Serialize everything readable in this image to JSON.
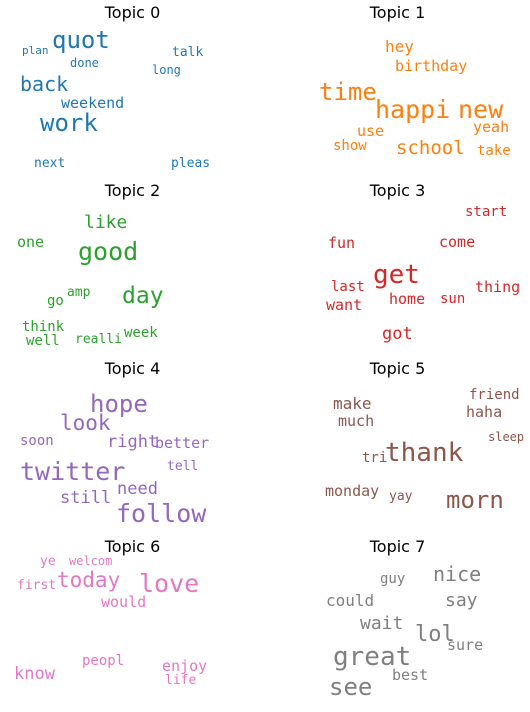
{
  "chart_data": [
    {
      "type": "wordcloud",
      "title": "Topic 0",
      "color": "#1f77b4",
      "words": [
        "quot",
        "work",
        "back",
        "weekend",
        "done",
        "plan",
        "talk",
        "long",
        "next",
        "pleas"
      ]
    },
    {
      "type": "wordcloud",
      "title": "Topic 1",
      "color": "#ff7f0e",
      "words": [
        "happi",
        "new",
        "time",
        "school",
        "hey",
        "birthday",
        "use",
        "yeah",
        "show",
        "take"
      ]
    },
    {
      "type": "wordcloud",
      "title": "Topic 2",
      "color": "#2ca02c",
      "words": [
        "good",
        "day",
        "like",
        "one",
        "go",
        "amp",
        "think",
        "well",
        "realli",
        "week"
      ]
    },
    {
      "type": "wordcloud",
      "title": "Topic 3",
      "color": "#d62728",
      "words": [
        "get",
        "fun",
        "come",
        "start",
        "last",
        "want",
        "home",
        "sun",
        "thing",
        "got"
      ]
    },
    {
      "type": "wordcloud",
      "title": "Topic 4",
      "color": "#9467bd",
      "words": [
        "twitter",
        "follow",
        "hope",
        "look",
        "right",
        "better",
        "soon",
        "need",
        "still",
        "tell"
      ]
    },
    {
      "type": "wordcloud",
      "title": "Topic 5",
      "color": "#8c564b",
      "words": [
        "thank",
        "morn",
        "make",
        "much",
        "friend",
        "haha",
        "sleep",
        "tri",
        "monday",
        "yay"
      ]
    },
    {
      "type": "wordcloud",
      "title": "Topic 6",
      "color": "#e377c2",
      "words": [
        "love",
        "today",
        "ye",
        "welcom",
        "first",
        "would",
        "know",
        "peopl",
        "enjoy",
        "life"
      ]
    },
    {
      "type": "wordcloud",
      "title": "Topic 7",
      "color": "#7f7f7f",
      "words": [
        "great",
        "see",
        "nice",
        "lol",
        "guy",
        "could",
        "say",
        "wait",
        "sure",
        "best"
      ]
    }
  ]
}
